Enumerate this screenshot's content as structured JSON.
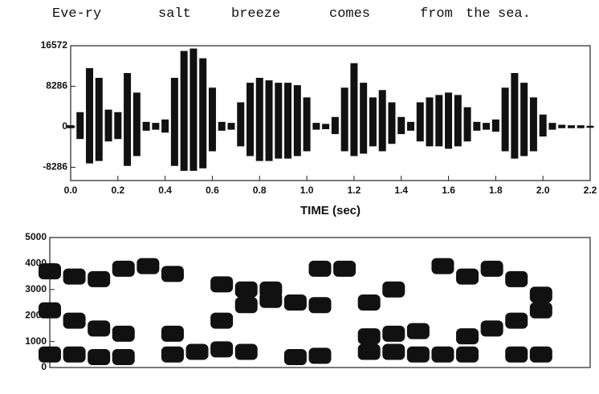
{
  "words": [
    "Eve-ry",
    "salt",
    "breeze",
    "comes",
    "from",
    "the",
    "sea."
  ],
  "chart_data": [
    {
      "type": "waveform",
      "xlabel": "TIME (sec)",
      "x": [
        0.0,
        0.04,
        0.08,
        0.12,
        0.16,
        0.2,
        0.24,
        0.28,
        0.32,
        0.36,
        0.4,
        0.44,
        0.48,
        0.52,
        0.56,
        0.6,
        0.64,
        0.68,
        0.72,
        0.76,
        0.8,
        0.84,
        0.88,
        0.92,
        0.96,
        1.0,
        1.04,
        1.08,
        1.12,
        1.16,
        1.2,
        1.24,
        1.28,
        1.32,
        1.36,
        1.4,
        1.44,
        1.48,
        1.52,
        1.56,
        1.6,
        1.64,
        1.68,
        1.72,
        1.76,
        1.8,
        1.84,
        1.88,
        1.92,
        1.96,
        2.0,
        2.04,
        2.08,
        2.12,
        2.16,
        2.2
      ],
      "series": [
        {
          "color": "#111111",
          "values": [
            300,
            3000,
            12000,
            10000,
            3500,
            3000,
            11000,
            7000,
            1000,
            800,
            1500,
            10000,
            15500,
            16000,
            14000,
            8000,
            1000,
            800,
            5000,
            9000,
            10000,
            9500,
            9000,
            9000,
            8500,
            6000,
            800,
            600,
            2000,
            8000,
            13000,
            9000,
            6000,
            7500,
            5000,
            2000,
            1000,
            5000,
            6000,
            6500,
            7000,
            6500,
            4000,
            1000,
            800,
            1500,
            8000,
            11000,
            9000,
            6000,
            2500,
            800,
            400,
            300,
            300,
            200
          ]
        },
        {
          "color": "#111111",
          "values": [
            -300,
            -2500,
            -7500,
            -7000,
            -3000,
            -2500,
            -8000,
            -6000,
            -800,
            -600,
            -1200,
            -8000,
            -9000,
            -9000,
            -8500,
            -5000,
            -800,
            -600,
            -4000,
            -6000,
            -7000,
            -7000,
            -6500,
            -6500,
            -6000,
            -5000,
            -600,
            -500,
            -1500,
            -5000,
            -6000,
            -5500,
            -4000,
            -5000,
            -3500,
            -1500,
            -800,
            -3000,
            -4000,
            -4000,
            -4500,
            -4000,
            -3000,
            -800,
            -600,
            -1000,
            -5000,
            -6500,
            -6000,
            -5000,
            -2000,
            -600,
            -300,
            -300,
            -300,
            -200
          ]
        }
      ],
      "xlim": [
        0,
        2.2
      ],
      "ylim": [
        -11000,
        16572
      ],
      "yticks": [
        16572,
        8286,
        0,
        -8286
      ],
      "xticks": [
        {
          "value": 0,
          "label": "0.0"
        },
        {
          "value": 0.2,
          "label": "0.2"
        },
        {
          "value": 0.4,
          "label": "0.4"
        },
        {
          "value": 0.6,
          "label": "0.6"
        },
        {
          "value": 0.8,
          "label": "0.8"
        },
        {
          "value": 1,
          "label": "1.0"
        },
        {
          "value": 1.2,
          "label": "1.2"
        },
        {
          "value": 1.4,
          "label": "1.4"
        },
        {
          "value": 1.6,
          "label": "1.6"
        },
        {
          "value": 1.8,
          "label": "1.8"
        },
        {
          "value": 2,
          "label": "2.0"
        },
        {
          "value": 2.2,
          "label": "2.2"
        }
      ]
    },
    {
      "type": "spectrogram",
      "x": [
        0.0,
        0.1,
        0.2,
        0.3,
        0.4,
        0.5,
        0.6,
        0.7,
        0.8,
        0.9,
        1.0,
        1.1,
        1.2,
        1.3,
        1.4,
        1.5,
        1.6,
        1.7,
        1.8,
        1.9,
        2.0,
        2.1,
        2.2
      ],
      "series": [
        {
          "color": "#111111",
          "values": [
            500,
            500,
            400,
            400,
            null,
            500,
            600,
            700,
            600,
            null,
            400,
            450,
            null,
            600,
            600,
            500,
            500,
            500,
            null,
            500,
            500,
            null,
            null
          ]
        },
        {
          "color": "#111111",
          "values": [
            2200,
            1800,
            1500,
            1300,
            null,
            1300,
            null,
            1800,
            2400,
            2600,
            2500,
            2400,
            null,
            1200,
            1300,
            1400,
            null,
            1200,
            1500,
            1800,
            2200,
            null,
            null
          ]
        },
        {
          "color": "#111111",
          "values": [
            3700,
            3500,
            3400,
            3800,
            3900,
            3600,
            null,
            3200,
            3000,
            3000,
            null,
            3800,
            3800,
            2500,
            3000,
            null,
            3900,
            3500,
            3800,
            3400,
            2800,
            null,
            null
          ]
        }
      ],
      "xlim": [
        0,
        2.2
      ],
      "ylim": [
        0,
        5000
      ],
      "yticks": [
        0,
        1000,
        2000,
        3000,
        4000,
        5000
      ]
    }
  ]
}
